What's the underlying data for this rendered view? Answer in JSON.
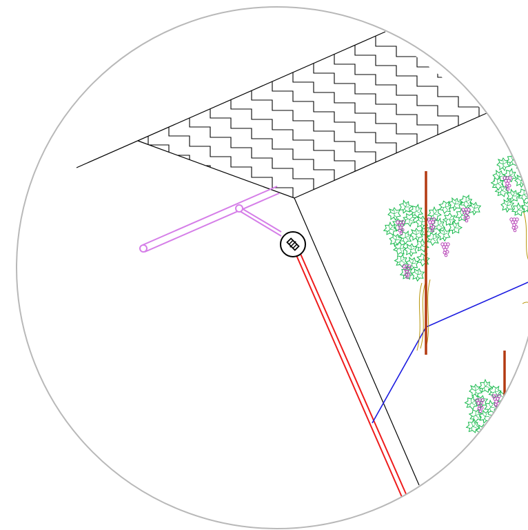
{
  "colors": {
    "background": "#ffffff",
    "frame": "#b8b8b8",
    "linework": "#000000",
    "pipe_purple": "#d57ee8",
    "pipe_red": "#ee1b1b",
    "blue_line": "#1a1ae0",
    "post": "#b33a12",
    "vine_stem": "#b8950a",
    "leaves": "#15b84a",
    "grapes": "#b43cb4"
  },
  "icons": {
    "valve": "valve-icon",
    "vine": "grapevine-icon"
  }
}
